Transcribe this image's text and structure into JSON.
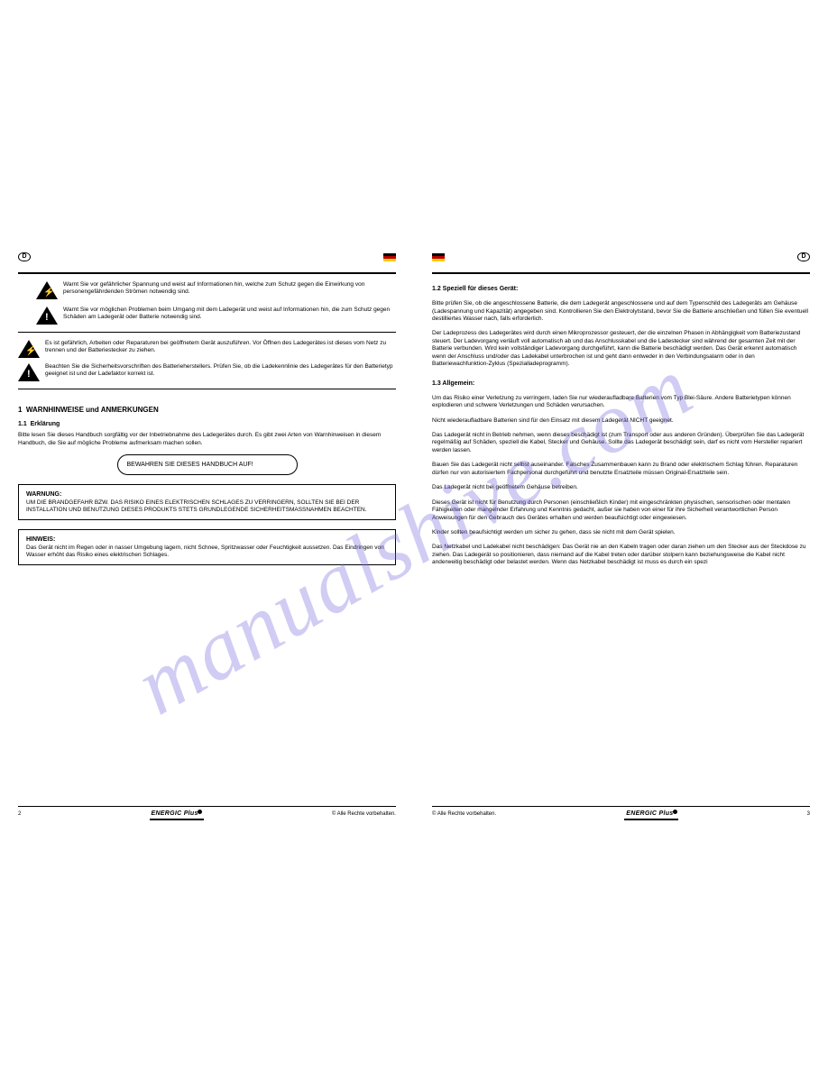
{
  "watermark": "manualshive.com",
  "left": {
    "badge": "D",
    "flag_colors": [
      "#000000",
      "#bb0000",
      "#ffcc00"
    ],
    "warn1": "Warnt Sie vor gefährlicher Spannung und weist auf Informationen hin, welche zum Schutz gegen die Einwirkung von personengefährdenden Strömen notwendig sind.",
    "warn2": "Warnt Sie vor möglichen Problemen beim Umgang mit dem Ladegerät und weist auf Informationen hin, die zum Schutz gegen Schäden am Ladegerät oder Batterie notwendig sind.",
    "note_bolt": "Es ist gefährlich, Arbeiten oder Reparaturen bei geöffnetem Gerät auszuführen. Vor Öffnen des Ladegerätes ist dieses vom Netz zu trennen und der Batteriestecker zu ziehen.",
    "note_bang": "Beachten Sie die Sicherheitsvorschriften des Batterieherstellers. Prüfen Sie, ob die Ladekennlinie des Ladegerätes für den Batterietyp geeignet ist und der Ladefaktor korrekt ist.",
    "sec_num": "1",
    "sec_title": "WARNHINWEISE und ANMERKUNGEN",
    "sub_num": "1.1",
    "sub_title": "Erklärung",
    "body1": "Bitte lesen Sie dieses Handbuch sorgfältig vor der Inbetriebnahme des Ladegerätes durch. Es gibt zwei Arten von Warnhinweisen in diesem Handbuch, die Sie auf mögliche Probleme aufmerksam machen sollen.",
    "pill": "BEWAHREN SIE DIESES HANDBUCH AUF!",
    "box1_title": "WARNUNG:",
    "box1_body": "UM DIE BRANDGEFAHR BZW. DAS RISIKO EINES ELEKTRISCHEN SCHLAGES ZU VERRINGERN, SOLLTEN SIE BEI DER INSTALLATION UND BENUTZUNG DIESES PRODUKTS STETS GRUNDLEGENDE SICHERHEITSMASSNAHMEN BEACHTEN.",
    "box2_title": "HINWEIS:",
    "box2_body": "Das Gerät nicht im Regen oder in nasser Umgebung lagern, nicht Schnee, Spritzwasser oder Feuchtigkeit aussetzen. Das Eindringen von Wasser erhöht das Risiko eines elektrischen Schlages.",
    "footnote": "© Alle Rechte vorbehalten.",
    "page_no": "2",
    "brand": "ENERGIC Plus"
  },
  "right": {
    "badge": "D",
    "flag_colors": [
      "#000000",
      "#bb0000",
      "#ffcc00"
    ],
    "h1": "1.2  Speziell für dieses Gerät:",
    "p1": "Bitte prüfen Sie, ob die angeschlossene Batterie, die dem Ladegerät angeschlossene und auf dem Typenschild des Ladegeräts am Gehäuse (Ladespannung und Kapazität) angegeben sind. Kontrollieren Sie den Elektrolytstand, bevor Sie die Batterie anschließen und füllen Sie eventuell destilliertes Wasser nach, falls erforderlich.",
    "p2": "Der Ladeprozess des Ladegerätes wird durch einen Mikroprozessor gesteuert, der die einzelnen Phasen in Abhängigkeit vom Batteriezustand steuert. Der Ladevorgang verläuft voll automatisch ab und das Anschlusskabel und die Ladestecker sind während der gesamten Zeit mit der Batterie verbunden. Wird kein vollständiger Ladevorgang durchgeführt, kann die Batterie beschädigt werden. Das Gerät erkennt automatisch wenn der Anschluss und/oder das Ladekabel unterbrochen ist und geht dann entweder in den Verbindungsalarm oder in den Batteriewachfunktion-Zyklus (Spezialladeprogramm).",
    "h2": "1.3  Allgemein:",
    "p3": "Um das Risiko einer Verletzung zu verringern, laden Sie nur wiederaufladbare Batterien vom Typ Blei-Säure. Andere Batterietypen können explodieren und schwere Verletzungen und Schäden verursachen.",
    "p4": "Nicht wiederaufladbare Batterien sind für den Einsatz mit diesem Ladegerät NICHT geeignet.",
    "p5": "Das Ladegerät nicht in Betrieb nehmen, wenn dieses beschädigt ist (zum Transport oder aus anderen Gründen). Überprüfen Sie das Ladegerät regelmäßig auf Schäden, speziell die Kabel, Stecker und Gehäuse. Sollte das Ladegerät beschädigt sein, darf es nicht vom Hersteller repariert werden lassen.",
    "p6": "Bauen Sie das Ladegerät nicht selbst auseinander. Falsches Zusammenbauen kann zu Brand oder elektrischem Schlag führen. Reparaturen dürfen nur von autorisiertem Fachpersonal durchgeführt und benutzte Ersatzteile müssen Original-Ersatzteile sein.",
    "p7": "Das Ladegerät nicht bei geöffnetem Gehäuse betreiben.",
    "p8": "Dieses Gerät ist nicht für Benutzung durch Personen (einschließlich Kinder) mit eingeschränkten physischen, sensorischen oder mentalen Fähigkeiten oder mangelnder Erfahrung und Kenntnis gedacht, außer sie haben von einer für ihre Sicherheit verantwortlichen Person Anweisungen für den Gebrauch des Gerätes erhalten und werden beaufsichtigt oder eingewiesen.",
    "p9": "Kinder sollten beaufsichtigt werden um sicher zu gehen, dass sie nicht mit dem Gerät spielen.",
    "p10": "Das Netzkabel und Ladekabel nicht beschädigen: Das Gerät nie an den Kabeln tragen oder daran ziehen um den Stecker aus der Steckdose zu ziehen. Das Ladegerät so positionieren, dass niemand auf die Kabel treten oder darüber stolpern kann beziehungsweise die Kabel nicht anderweitig beschädigt oder belastet werden. Wenn das Netzkabel beschädigt ist muss es durch ein spezi",
    "footnote": "© Alle Rechte vorbehalten.",
    "page_no": "3",
    "brand": "ENERGIC Plus"
  }
}
